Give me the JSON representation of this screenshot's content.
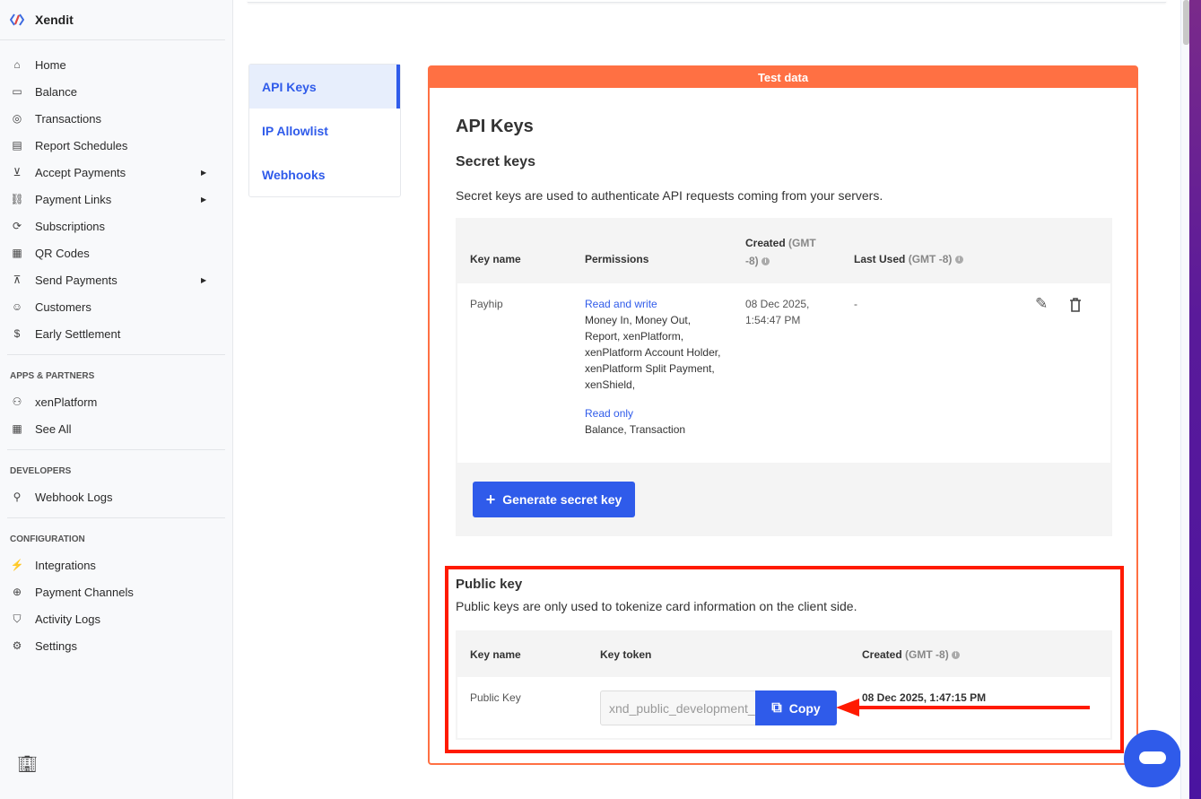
{
  "brand": {
    "name": "Xendit"
  },
  "sidebar": {
    "items": [
      {
        "label": "Home",
        "icon": "home-icon"
      },
      {
        "label": "Balance",
        "icon": "wallet-icon"
      },
      {
        "label": "Transactions",
        "icon": "coins-icon"
      },
      {
        "label": "Report Schedules",
        "icon": "document-icon"
      },
      {
        "label": "Accept Payments",
        "icon": "download-circle-icon"
      },
      {
        "label": "Payment Links",
        "icon": "link-icon"
      },
      {
        "label": "Subscriptions",
        "icon": "refresh-icon"
      },
      {
        "label": "QR Codes",
        "icon": "qr-icon"
      },
      {
        "label": "Send Payments",
        "icon": "upload-circle-icon"
      },
      {
        "label": "Customers",
        "icon": "customer-icon"
      },
      {
        "label": "Early Settlement",
        "icon": "dollar-circle-icon"
      }
    ],
    "apps_title": "APPS & PARTNERS",
    "apps": [
      {
        "label": "xenPlatform"
      },
      {
        "label": "See All"
      }
    ],
    "dev_title": "DEVELOPERS",
    "dev": [
      {
        "label": "Webhook Logs"
      }
    ],
    "config_title": "CONFIGURATION",
    "config": [
      {
        "label": "Integrations"
      },
      {
        "label": "Payment Channels"
      },
      {
        "label": "Activity Logs"
      },
      {
        "label": "Settings"
      }
    ]
  },
  "subnav": [
    {
      "label": "API Keys"
    },
    {
      "label": "IP Allowlist"
    },
    {
      "label": "Webhooks"
    }
  ],
  "card": {
    "banner": "Test data",
    "title": "API Keys",
    "secret_title": "Secret keys",
    "secret_desc": "Secret keys are used to authenticate API requests coming from your servers.",
    "headers": {
      "key_name": "Key name",
      "permissions": "Permissions",
      "created": "Created",
      "created_tz": "(GMT -8)",
      "last_used": "Last Used",
      "last_used_tz": "(GMT -8)"
    },
    "row": {
      "name": "Payhip",
      "rw_label": "Read and write",
      "rw_items": "Money In, Money Out, Report, xenPlatform, xenPlatform Account Holder, xenPlatform Split Payment, xenShield,",
      "ro_label": "Read only",
      "ro_items": "Balance, Transaction",
      "created": "08 Dec 2025, 1:54:47 PM",
      "last_used": "-"
    },
    "generate": "Generate secret key",
    "public_title": "Public key",
    "public_desc": "Public keys are only used to tokenize card information on the client side.",
    "pub_headers": {
      "key_name": "Key name",
      "token": "Key token",
      "created": "Created",
      "created_tz": "(GMT -8)"
    },
    "pub_row": {
      "name": "Public Key",
      "token": "xnd_public_development_",
      "copy": "Copy",
      "created": "08 Dec 2025, 1:47:15 PM"
    }
  },
  "colors": {
    "accent": "#2f5bea",
    "test_banner": "#ff7043",
    "highlight": "#ff1a00"
  }
}
